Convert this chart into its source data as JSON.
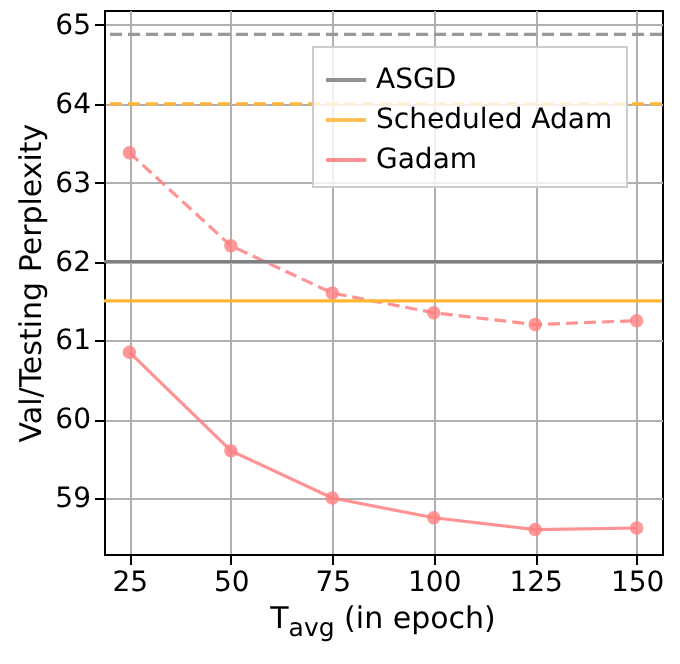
{
  "chart_data": {
    "type": "line",
    "xlabel": "T$_{avg}$ (in epoch)",
    "ylabel": "Val/Testing Perplexity",
    "xlim": [
      18.75,
      156.25
    ],
    "ylim": [
      58.29,
      65.19
    ],
    "xticks": [
      25,
      50,
      75,
      100,
      125,
      150
    ],
    "yticks": [
      59,
      60,
      61,
      62,
      63,
      64,
      65
    ],
    "grid": true,
    "legend": "top right",
    "x": [
      25,
      50,
      75,
      100,
      125,
      150
    ],
    "ref_lines": [
      {
        "axis": "y",
        "value": 62.0,
        "label": "ASGD",
        "color": "#808080",
        "line_style": "solid"
      },
      {
        "axis": "y",
        "value": 64.88,
        "color": "#999999",
        "line_style": "dashed"
      },
      {
        "axis": "y",
        "value": 61.5,
        "label": "Scheduled Adam",
        "color": "#ffb733",
        "line_style": "solid"
      },
      {
        "axis": "y",
        "value": 64.0,
        "color": "#ffb733",
        "line_style": "dashed"
      }
    ],
    "series": [
      {
        "name": "Gadam",
        "color": "#ff7f7f",
        "values": [
          60.85,
          59.6,
          59.0,
          58.75,
          58.6,
          58.62
        ],
        "line_style": "solid",
        "marker": "circle"
      },
      {
        "color": "#ff7f7f",
        "values": [
          63.38,
          62.2,
          61.6,
          61.35,
          61.2,
          61.25
        ],
        "line_style": "dashed",
        "marker": "circle"
      }
    ]
  }
}
